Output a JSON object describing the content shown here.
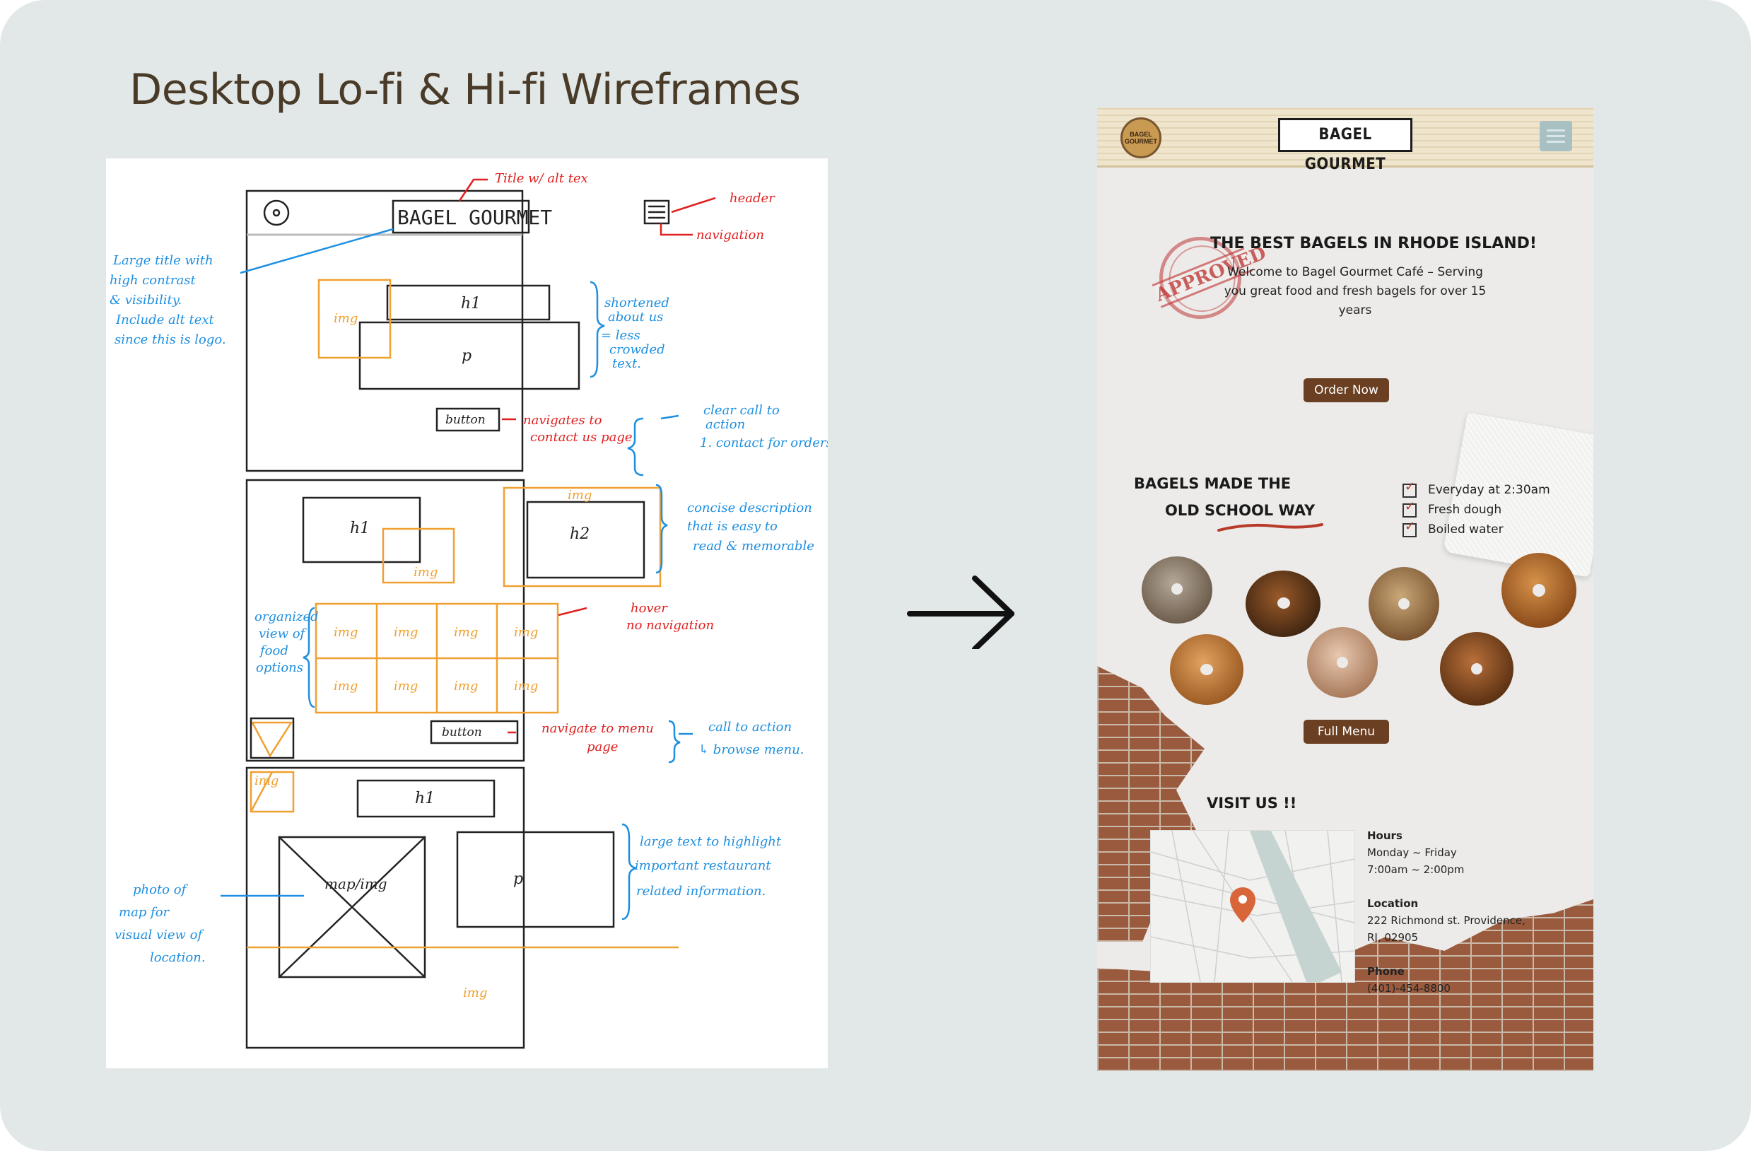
{
  "page": {
    "title": "Desktop Lo-fi & Hi-fi Wireframes"
  },
  "lofi": {
    "brand": "BAGEL GOURMET",
    "annotations": {
      "title_alt": "Title w/ alt tex",
      "header": "header",
      "navigation": "navigation",
      "large_title": [
        "Large title with",
        "high contrast",
        "& visibility.",
        "Include alt text",
        "since this is logo."
      ],
      "shortened": [
        "shortened",
        "about us",
        "= less",
        "crowded",
        "text."
      ],
      "navigates_contact": [
        "navigates to",
        "contact us page"
      ],
      "clear_cta": [
        "clear call to",
        "action",
        "1. contact for orders"
      ],
      "concise": [
        "concise description",
        "that is easy to",
        "read & memorable"
      ],
      "organized": [
        "organized",
        "view of",
        "food",
        "options"
      ],
      "hover": [
        "hover",
        "no navigation"
      ],
      "navigate_menu": [
        "navigate to menu",
        "page"
      ],
      "cta_browse": [
        "call to action",
        "↳ browse menu."
      ],
      "large_text": [
        "large text to highlight",
        "important restaurant",
        "related information."
      ],
      "photo_map": [
        "photo of",
        "map for",
        "visual view of",
        "location."
      ]
    },
    "labels": {
      "img": "img",
      "h1": "h1",
      "h2": "h2",
      "p": "p",
      "button": "button",
      "map_img": "map/img"
    }
  },
  "hifi": {
    "logo_text": "BAGEL GOURMET",
    "brand": "BAGEL GOURMET",
    "hero_title": "THE BEST BAGELS IN RHODE ISLAND!",
    "hero_text": "Welcome to Bagel Gourmet Café – Serving you great food and fresh bagels for over 15 years",
    "stamp": "APPROVED",
    "order_button": "Order Now",
    "section_title_1": "BAGELS MADE THE",
    "section_title_2": "OLD SCHOOL WAY",
    "checklist": [
      "Everyday at 2:30am",
      "Fresh dough",
      "Boiled water"
    ],
    "menu_button": "Full Menu",
    "visit_title": "VISIT US !!",
    "hours_label": "Hours",
    "hours_days": "Monday ~ Friday",
    "hours_time": "7:00am ~ 2:00pm",
    "location_label": "Location",
    "location_line1": "222 Richmond st. Providence,",
    "location_line2": "RI, 02905",
    "phone_label": "Phone",
    "phone": "(401)-454-8800"
  },
  "colors": {
    "background": "#e2e8e8",
    "title": "#4a3b28",
    "annotation_blue": "#1d8fe0",
    "annotation_red": "#e02020",
    "annotation_orange": "#f0a030",
    "button_brown": "#6b3f22",
    "menu_button": "#a9c0c2"
  }
}
